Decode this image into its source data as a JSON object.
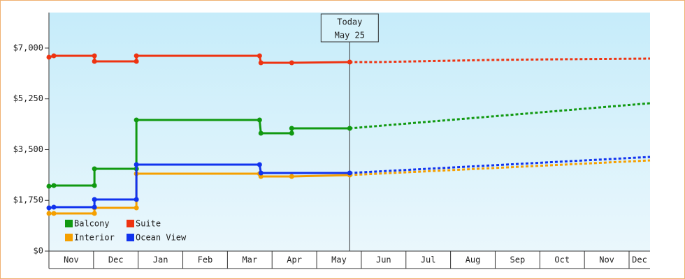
{
  "chart_data": {
    "type": "step-line",
    "categories": [
      "Nov",
      "Dec",
      "Jan",
      "Feb",
      "Mar",
      "Apr",
      "May",
      "Jun",
      "Jul",
      "Aug",
      "Sep",
      "Oct",
      "Nov",
      "Dec"
    ],
    "xlim": [
      0,
      13.47
    ],
    "ylim": [
      0,
      8225
    ],
    "yticks": [
      {
        "value": 0,
        "label": "$0"
      },
      {
        "value": 1750,
        "label": "$1,750"
      },
      {
        "value": 3500,
        "label": "$3,500"
      },
      {
        "value": 5250,
        "label": "$5,250"
      },
      {
        "value": 7000,
        "label": "$7,000"
      }
    ],
    "today": {
      "x": 6.74,
      "label": [
        "Today",
        "May 25"
      ]
    },
    "series": [
      {
        "name": "Balcony",
        "color": "#119911",
        "x": [
          0,
          0.11,
          1.02,
          1.02,
          1.96,
          1.96,
          4.72,
          4.75,
          5.44,
          5.44,
          6.74
        ],
        "values": [
          2237,
          2260,
          2260,
          2838,
          2838,
          4522,
          4522,
          4065,
          4065,
          4233,
          4233
        ],
        "forecast_x": [
          6.74,
          13.47
        ],
        "forecast_values": [
          4233,
          5099
        ]
      },
      {
        "name": "Suite",
        "color": "#ee3311",
        "x": [
          0,
          0.11,
          1.02,
          1.02,
          1.96,
          1.96,
          4.72,
          4.75,
          5.44,
          6.74
        ],
        "values": [
          6686,
          6734,
          6734,
          6542,
          6542,
          6734,
          6734,
          6494,
          6494,
          6518
        ],
        "forecast_x": [
          6.74,
          7.37,
          9.87,
          11.44,
          13.47
        ],
        "forecast_values": [
          6518,
          6518,
          6590,
          6614,
          6638
        ]
      },
      {
        "name": "Interior",
        "color": "#f5a000",
        "x": [
          0,
          0.11,
          1.02,
          1.02,
          1.96,
          1.96,
          4.72,
          4.75,
          5.44,
          6.74
        ],
        "values": [
          1299,
          1299,
          1299,
          1491,
          1491,
          2670,
          2670,
          2574,
          2574,
          2622
        ],
        "forecast_x": [
          6.74,
          13.47
        ],
        "forecast_values": [
          2622,
          3127
        ]
      },
      {
        "name": "Ocean View",
        "color": "#1133ee",
        "x": [
          0,
          0.11,
          1.02,
          1.02,
          1.96,
          1.96,
          4.72,
          4.75,
          6.74
        ],
        "values": [
          1491,
          1515,
          1515,
          1780,
          1780,
          2982,
          2982,
          2694,
          2694
        ],
        "forecast_x": [
          6.74,
          13.47
        ],
        "forecast_values": [
          2694,
          3247
        ]
      }
    ]
  }
}
